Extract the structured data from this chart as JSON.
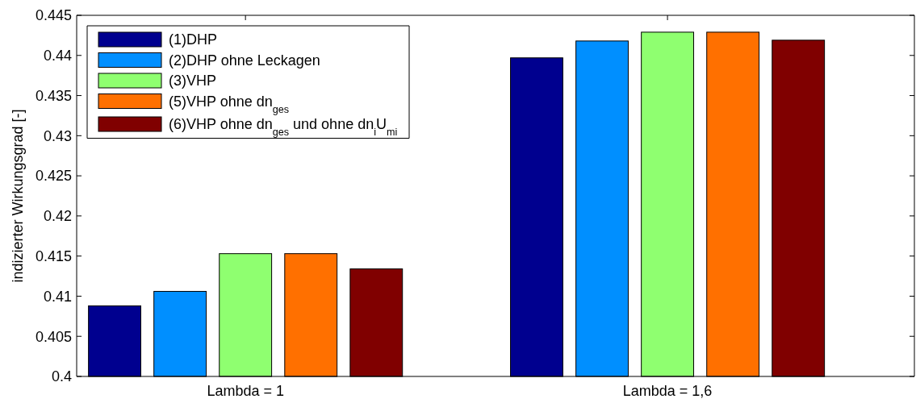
{
  "chart_data": {
    "type": "bar",
    "ylabel": "indizierter Wirkungsgrad [-]",
    "categories": [
      "Lambda = 1",
      "Lambda = 1,6"
    ],
    "series": [
      {
        "name": "(1)DHP",
        "color": "#00008f",
        "values": [
          0.4088,
          0.4397
        ]
      },
      {
        "name": "(2)DHP ohne Leckagen",
        "color": "#008fff",
        "values": [
          0.4106,
          0.4418
        ]
      },
      {
        "name": "(3)VHP",
        "color": "#8fff70",
        "values": [
          0.4153,
          0.4429
        ]
      },
      {
        "name": "(5)VHP ohne dn$_{ges}$",
        "color": "#ff7000",
        "values": [
          0.4153,
          0.4429
        ]
      },
      {
        "name": "(6)VHP ohne dn$_{ges}$ und ohne dn$_{i}$U$_{mi}$",
        "color": "#800000",
        "values": [
          0.4134,
          0.4419
        ]
      }
    ],
    "ylim": [
      0.4,
      0.445
    ],
    "yticks": [
      0.4,
      0.405,
      0.41,
      0.415,
      0.42,
      0.425,
      0.43,
      0.435,
      0.44,
      0.445
    ],
    "legend": "top left",
    "grid": false
  }
}
